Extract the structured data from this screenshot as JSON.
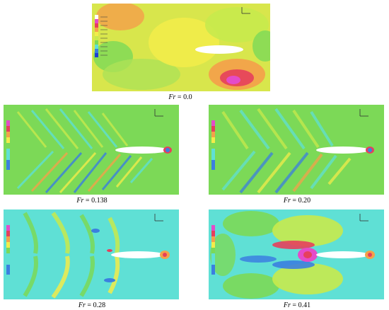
{
  "panels": [
    {
      "symbol": "Fr",
      "label": "Fr = 0.0",
      "value": "0.0",
      "froude": 0.0
    },
    {
      "symbol": "Fr",
      "label": "Fr = 0.138",
      "value": "0.138",
      "froude": 0.138
    },
    {
      "symbol": "Fr",
      "label": "Fr = 0.20",
      "value": "0.20",
      "froude": 0.2
    },
    {
      "symbol": "Fr",
      "label": "Fr = 0.28",
      "value": "0.28",
      "froude": 0.28
    },
    {
      "symbol": "Fr",
      "label": "Fr = 0.41",
      "value": "0.41",
      "froude": 0.41
    }
  ],
  "palette": {
    "green": "#7cd957",
    "yellow_green": "#c8ea4c",
    "yellow": "#f2ec4a",
    "orange": "#f3a24a",
    "red": "#e6405c",
    "magenta": "#e44bc9",
    "cyan": "#5fe0d5",
    "blue": "#3b7fe0",
    "hull": "#ffffff"
  }
}
